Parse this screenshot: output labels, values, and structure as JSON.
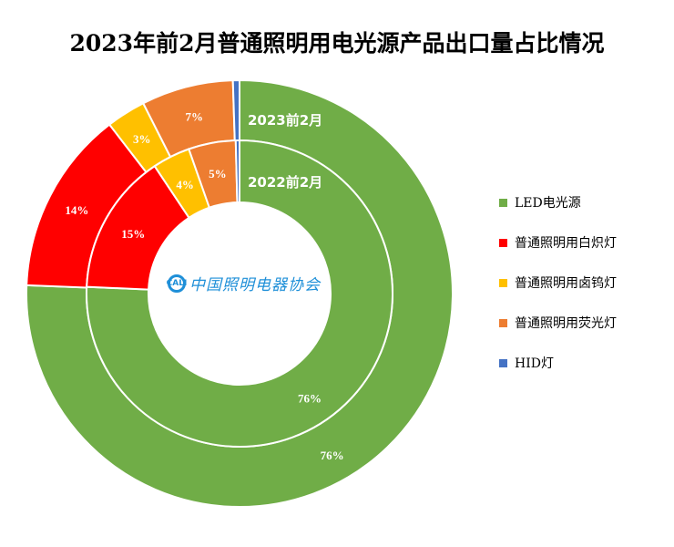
{
  "title": "2023年前2月普通照明用电光源产品出口量占比情况",
  "logo": {
    "mark": "CALI",
    "text": "中国照明电器协会"
  },
  "chart_data": {
    "type": "pie",
    "subtype": "double-donut",
    "title": "2023年前2月普通照明用电光源产品出口量占比情况",
    "categories": [
      "LED电光源",
      "普通照明用白炽灯",
      "普通照明用卤钨灯",
      "普通照明用荧光灯",
      "HID灯"
    ],
    "colors": [
      "#70ad47",
      "#ff0000",
      "#ffc000",
      "#ed7d31",
      "#4472c4"
    ],
    "series": [
      {
        "name": "2023前2月",
        "ring": "outer",
        "values": [
          76,
          14,
          3,
          7,
          0.5
        ],
        "labels": [
          "76%",
          "14%",
          "3%",
          "7%",
          ""
        ]
      },
      {
        "name": "2022前2月",
        "ring": "inner",
        "values": [
          76,
          15,
          4,
          5,
          0.4
        ],
        "labels": [
          "76%",
          "15%",
          "4%",
          "5%",
          ""
        ]
      }
    ],
    "legend_position": "right"
  }
}
